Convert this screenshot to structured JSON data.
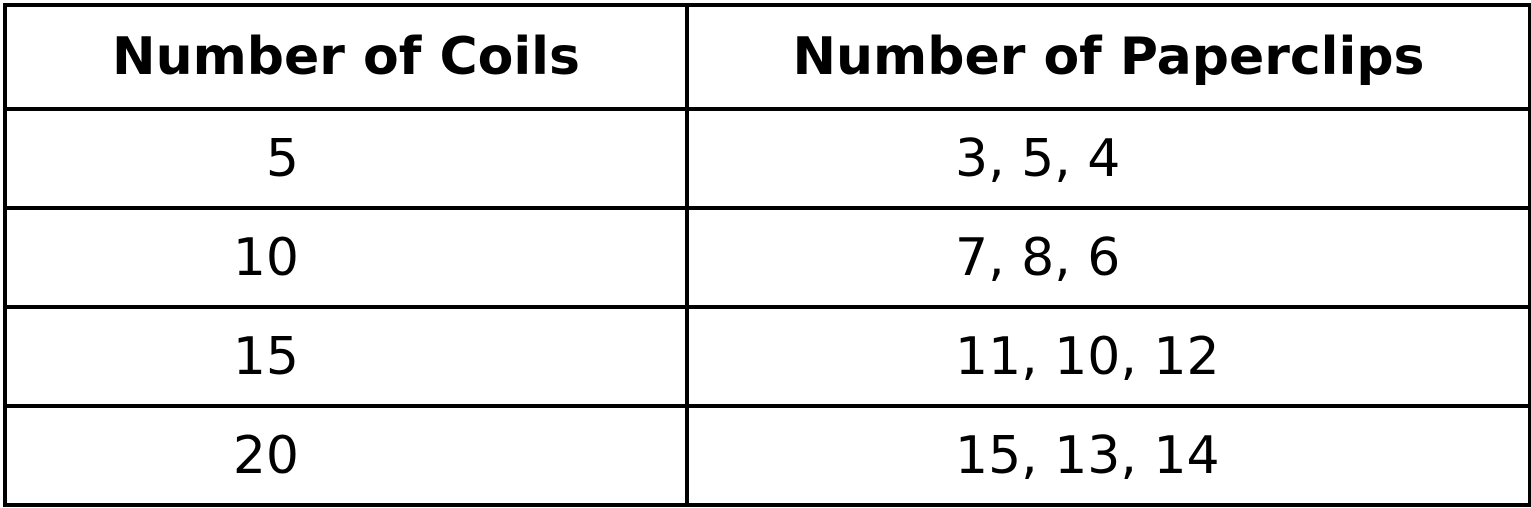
{
  "table": {
    "headers": [
      "Number of Coils",
      "Number of Paperclips"
    ],
    "rows": [
      {
        "coils": "5",
        "paperclips": "3, 5, 4"
      },
      {
        "coils": "10",
        "paperclips": "7, 8, 6"
      },
      {
        "coils": "15",
        "paperclips": "11, 10, 12"
      },
      {
        "coils": "20",
        "paperclips": "15, 13, 14"
      }
    ]
  }
}
